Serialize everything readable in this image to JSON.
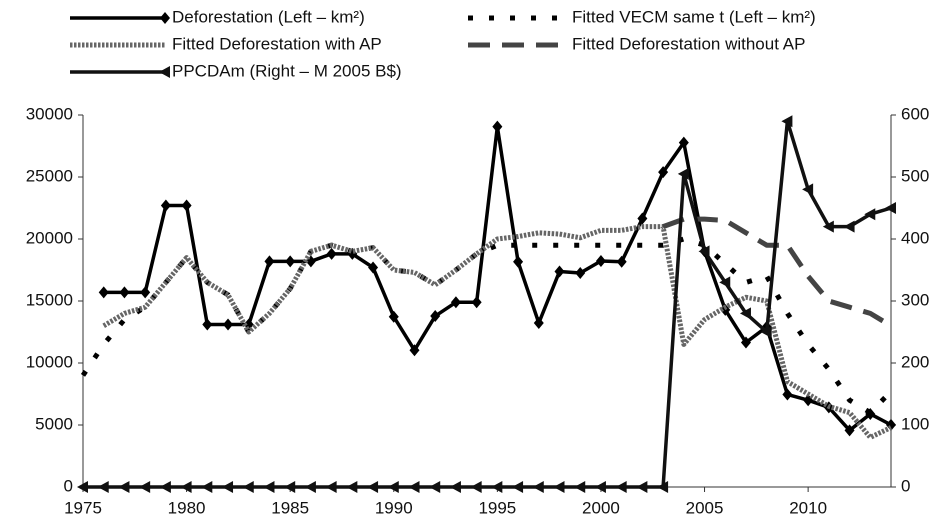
{
  "chart_data": {
    "type": "line",
    "x": [
      1975,
      1976,
      1977,
      1978,
      1979,
      1980,
      1981,
      1982,
      1983,
      1984,
      1985,
      1986,
      1987,
      1988,
      1989,
      1990,
      1991,
      1992,
      1993,
      1994,
      1995,
      1996,
      1997,
      1998,
      1999,
      2000,
      2001,
      2002,
      2003,
      2004,
      2005,
      2006,
      2007,
      2008,
      2009,
      2010,
      2011,
      2012,
      2013,
      2014
    ],
    "xlim": [
      1975,
      2014
    ],
    "xticks": [
      1975,
      1980,
      1985,
      1990,
      1995,
      2000,
      2005,
      2010
    ],
    "ylim": [
      0,
      30000
    ],
    "yticks": [
      0,
      5000,
      10000,
      15000,
      20000,
      25000,
      30000
    ],
    "y2lim": [
      0,
      600
    ],
    "y2ticks": [
      0,
      100,
      200,
      300,
      400,
      500,
      600
    ],
    "grid": false,
    "legend": "top",
    "series": [
      {
        "name": "Deforestation (Left – km²)",
        "color": "#000000",
        "style": "solid",
        "marker": "diamond",
        "values": [
          null,
          15700,
          15700,
          15700,
          22700,
          22700,
          13100,
          13100,
          13100,
          18200,
          18200,
          18200,
          18800,
          18800,
          17700,
          13730,
          11030,
          13786,
          14896,
          14896,
          29059,
          18161,
          13227,
          17383,
          17259,
          18226,
          18165,
          21651,
          25396,
          27772,
          19014,
          14286,
          11651,
          12911,
          7464,
          7000,
          6418,
          4571,
          5891,
          5012
        ]
      },
      {
        "name": "Fitted VECM same t (Left – km²)",
        "color": "#000000",
        "style": "dotted",
        "values": [
          9000,
          11500,
          13500,
          14500,
          16500,
          18500,
          16500,
          15500,
          12500,
          14000,
          16000,
          19000,
          19500,
          19000,
          19300,
          17500,
          17300,
          16300,
          17500,
          18800,
          19500,
          19500,
          19500,
          19500,
          19500,
          19500,
          19500,
          19500,
          19500,
          20000,
          19500,
          18000,
          16500,
          17000,
          14000,
          11500,
          9500,
          7000,
          6000,
          7700
        ]
      },
      {
        "name": "Fitted Deforestation with AP",
        "color": "#666666",
        "style": "dense-dotted",
        "values": [
          null,
          13000,
          14000,
          14500,
          16500,
          18500,
          16500,
          15500,
          12500,
          14000,
          16000,
          19000,
          19500,
          19000,
          19300,
          17500,
          17300,
          16300,
          17500,
          18800,
          20000,
          20200,
          20500,
          20400,
          20100,
          20700,
          20700,
          21000,
          21000,
          11500,
          13500,
          14500,
          15300,
          15000,
          8500,
          7500,
          6500,
          6000,
          4000,
          4800
        ]
      },
      {
        "name": "Fitted Deforestation without AP",
        "color": "#444444",
        "style": "dashed",
        "values": [
          null,
          null,
          null,
          null,
          null,
          null,
          null,
          null,
          null,
          null,
          null,
          null,
          null,
          null,
          null,
          null,
          null,
          null,
          null,
          null,
          null,
          null,
          null,
          null,
          null,
          null,
          null,
          null,
          21000,
          21600,
          21600,
          21500,
          20500,
          19500,
          19500,
          17000,
          15000,
          14500,
          14000,
          13000
        ]
      },
      {
        "name": "PPCDAm (Right – M 2005 B$)",
        "color": "#111111",
        "style": "solid",
        "marker": "triangle-left",
        "axis": "y2",
        "values": [
          0,
          0,
          0,
          0,
          0,
          0,
          0,
          0,
          0,
          0,
          0,
          0,
          0,
          0,
          0,
          0,
          0,
          0,
          0,
          0,
          0,
          0,
          0,
          0,
          0,
          0,
          0,
          0,
          0,
          505,
          380,
          330,
          280,
          250,
          590,
          480,
          420,
          420,
          440,
          450
        ]
      }
    ]
  }
}
